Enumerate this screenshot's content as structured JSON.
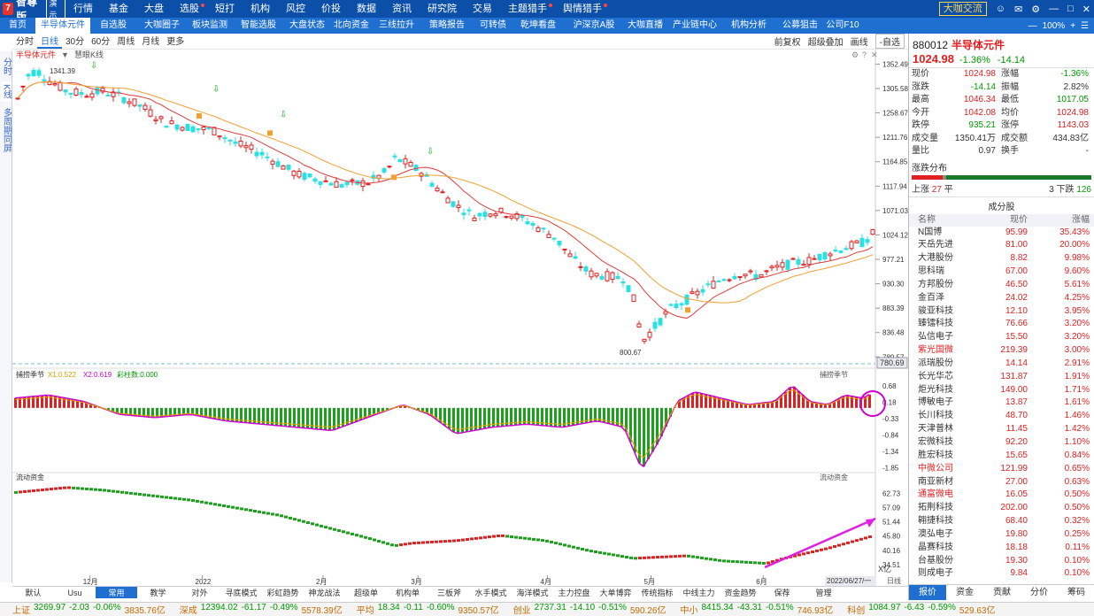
{
  "app": {
    "logo_text": "智尊版",
    "version_badge": "演示",
    "menu": [
      "行情",
      "基金",
      "大盘",
      "选股",
      "短打",
      "机构",
      "风控",
      "价投",
      "数据",
      "资讯",
      "研究院",
      "交易",
      "主题猎手",
      "舆情猎手"
    ],
    "menu_dots": [
      false,
      false,
      false,
      true,
      false,
      false,
      false,
      false,
      false,
      false,
      false,
      false,
      true,
      true
    ],
    "right_badge": "大咖交流",
    "window_icons": [
      "user-icon",
      "message-icon",
      "gear-icon",
      "minimize-icon",
      "restore-icon",
      "close-icon"
    ]
  },
  "tabbar": {
    "tabs": [
      "首页",
      "半导体元件",
      "自选股",
      "大咖圈子",
      "板块监测",
      "智能选股",
      "大盘状态",
      "北向资金",
      "三线拉升",
      "策略报告",
      "可转债",
      "乾坤看盘",
      "沪深京A股",
      "大咖直播",
      "产业链中心",
      "机构分析",
      "公募狙击",
      "公司F10"
    ],
    "active_index": 1,
    "zoom": "100%"
  },
  "leftside": {
    "items": [
      "分时",
      "K线",
      "多周期同屏"
    ],
    "active_index": 1
  },
  "chartbar": {
    "periods": [
      "分时",
      "日线",
      "30分",
      "60分",
      "周线",
      "月线",
      "更多"
    ],
    "active_index": 1,
    "right": [
      "前复权",
      "超级叠加",
      "画线"
    ],
    "select": "-自选"
  },
  "kline": {
    "title": "半导体元件",
    "subtitle": "慧眼K线",
    "y_ticks": [
      "1352.49",
      "1305.58",
      "1258.67",
      "1211.76",
      "1164.85",
      "1117.94",
      "1071.03",
      "1024.12",
      "977.21",
      "930.30",
      "883.39",
      "836.48",
      "789.57"
    ],
    "high_label": "1341.39",
    "low_label": "800.67",
    "last_value_tag": "780.69",
    "price_range": [
      785,
      1360
    ],
    "bull_color": "#e02020",
    "bear_color": "#2ae0e0",
    "ma1_color": "#e03a3a",
    "ma2_color": "#f0a030"
  },
  "osc": {
    "title": "捕捞季节",
    "x1": "X1:0.522",
    "x2": "X2:0.619",
    "bars": "彩柱数:0.000",
    "right_title": "捕捞季节",
    "y_ticks": [
      "0.68",
      "0.18",
      "-0.33",
      "-0.84",
      "-1.34",
      "-1.85"
    ],
    "range": [
      -2.0,
      0.9
    ]
  },
  "flow": {
    "title": "流动资金",
    "right_title": "流动资金",
    "y_ticks": [
      "62.73",
      "57.09",
      "51.44",
      "45.80",
      "40.16",
      "34.51"
    ],
    "unit": "X亿",
    "range": [
      31,
      66
    ]
  },
  "x_axis": {
    "labels": [
      "12月",
      "2022",
      "2月",
      "3月",
      "4月",
      "5月",
      "6月"
    ],
    "positions": [
      0.09,
      0.22,
      0.36,
      0.47,
      0.62,
      0.74,
      0.87
    ],
    "date_tag": "2022/06/27/一",
    "extra": "日线"
  },
  "bottom_tabs": [
    "默认",
    "Usu",
    "常用",
    "教学",
    "对外",
    "寻底模式",
    "彩虹趋势",
    "神龙战法",
    "超级单",
    "机构单",
    "三板斧",
    "水手模式",
    "海洋模式",
    "主力控盘",
    "大单博弈",
    "传统指标",
    "中线主力",
    "资金趋势",
    "保荐",
    "管理"
  ],
  "bottom_active": 2,
  "status": [
    {
      "name": "上证",
      "v": "3269.97",
      "c": "-2.03",
      "p": "-0.06%",
      "a": "3835.76亿"
    },
    {
      "name": "深成",
      "v": "12394.02",
      "c": "-61.17",
      "p": "-0.49%",
      "a": "5578.39亿"
    },
    {
      "name": "平均",
      "v": "18.34",
      "c": "-0.11",
      "p": "-0.60%",
      "a": "9350.57亿"
    },
    {
      "name": "创业",
      "v": "2737.31",
      "c": "-14.10",
      "p": "-0.51%",
      "a": "590.26亿"
    },
    {
      "name": "中小",
      "v": "8415.34",
      "c": "-43.31",
      "p": "-0.51%",
      "a": "746.93亿"
    },
    {
      "name": "科创",
      "v": "1084.97",
      "c": "-6.43",
      "p": "-0.59%",
      "a": "529.63亿"
    }
  ],
  "rpanel": {
    "code": "880012",
    "name": "半导体元件",
    "price": "1024.98",
    "chg_pct": "-1.36%",
    "chg": "-14.14",
    "quotes": [
      [
        "现价",
        "1024.98",
        "涨幅",
        "-1.36%"
      ],
      [
        "涨跌",
        "-14.14",
        "振幅",
        "2.82%"
      ],
      [
        "最高",
        "1046.34",
        "最低",
        "1017.05"
      ],
      [
        "今开",
        "1042.08",
        "均价",
        "1024.98"
      ],
      [
        "跌停",
        "935.21",
        "涨停",
        "1143.03"
      ],
      [
        "成交量",
        "1350.41万",
        "成交额",
        "434.83亿"
      ],
      [
        "量比",
        "0.97",
        "换手",
        "-"
      ]
    ],
    "quote_colors": [
      [
        "#e02020",
        "#009900"
      ],
      [
        "#009900",
        "#333"
      ],
      [
        "#e02020",
        "#009900"
      ],
      [
        "#e02020",
        "#e02020"
      ],
      [
        "#009900",
        "#e02020"
      ],
      [
        "#333",
        "#333"
      ],
      [
        "#333",
        "#333"
      ]
    ],
    "dist_title": "涨跌分布",
    "dist_up_label": "上涨",
    "dist_up": "27",
    "dist_flat_label": "平",
    "dist_flat": "3",
    "dist_down_label": "下跌",
    "dist_down": "126",
    "comp_title": "成分股",
    "comp_headers": [
      "名称",
      "现价",
      "涨幅"
    ],
    "comps": [
      [
        "N国博",
        "95.99",
        "35.43%",
        ""
      ],
      [
        "天岳先进",
        "81.00",
        "20.00%",
        ""
      ],
      [
        "大港股份",
        "8.82",
        "9.98%",
        ""
      ],
      [
        "思科瑞",
        "67.00",
        "9.60%",
        ""
      ],
      [
        "方邦股份",
        "46.50",
        "5.61%",
        ""
      ],
      [
        "金百泽",
        "24.02",
        "4.25%",
        ""
      ],
      [
        "骏亚科技",
        "12.10",
        "3.95%",
        ""
      ],
      [
        "臻镭科技",
        "76.66",
        "3.20%",
        ""
      ],
      [
        "弘信电子",
        "15.50",
        "3.20%",
        ""
      ],
      [
        "紫光国微",
        "219.39",
        "3.00%",
        "red"
      ],
      [
        "派瑞股份",
        "14.14",
        "2.91%",
        ""
      ],
      [
        "长光华芯",
        "131.87",
        "1.91%",
        ""
      ],
      [
        "炬光科技",
        "149.00",
        "1.71%",
        ""
      ],
      [
        "博敏电子",
        "13.87",
        "1.61%",
        ""
      ],
      [
        "长川科技",
        "48.70",
        "1.46%",
        ""
      ],
      [
        "天津普林",
        "11.45",
        "1.42%",
        ""
      ],
      [
        "宏微科技",
        "92.20",
        "1.10%",
        ""
      ],
      [
        "胜宏科技",
        "15.65",
        "0.84%",
        ""
      ],
      [
        "中微公司",
        "121.99",
        "0.65%",
        "red"
      ],
      [
        "南亚新材",
        "27.00",
        "0.63%",
        ""
      ],
      [
        "通富微电",
        "16.05",
        "0.50%",
        "red"
      ],
      [
        "拓荆科技",
        "202.00",
        "0.50%",
        ""
      ],
      [
        "翱捷科技",
        "68.40",
        "0.32%",
        ""
      ],
      [
        "澳弘电子",
        "19.80",
        "0.25%",
        ""
      ],
      [
        "晶赛科技",
        "18.18",
        "0.11%",
        ""
      ],
      [
        "台基股份",
        "19.30",
        "0.10%",
        ""
      ],
      [
        "则成电子",
        "9.84",
        "0.10%",
        ""
      ]
    ],
    "tabs": [
      "报价",
      "资金",
      "贡献",
      "分价",
      "筹码"
    ],
    "active_tab": 0
  }
}
